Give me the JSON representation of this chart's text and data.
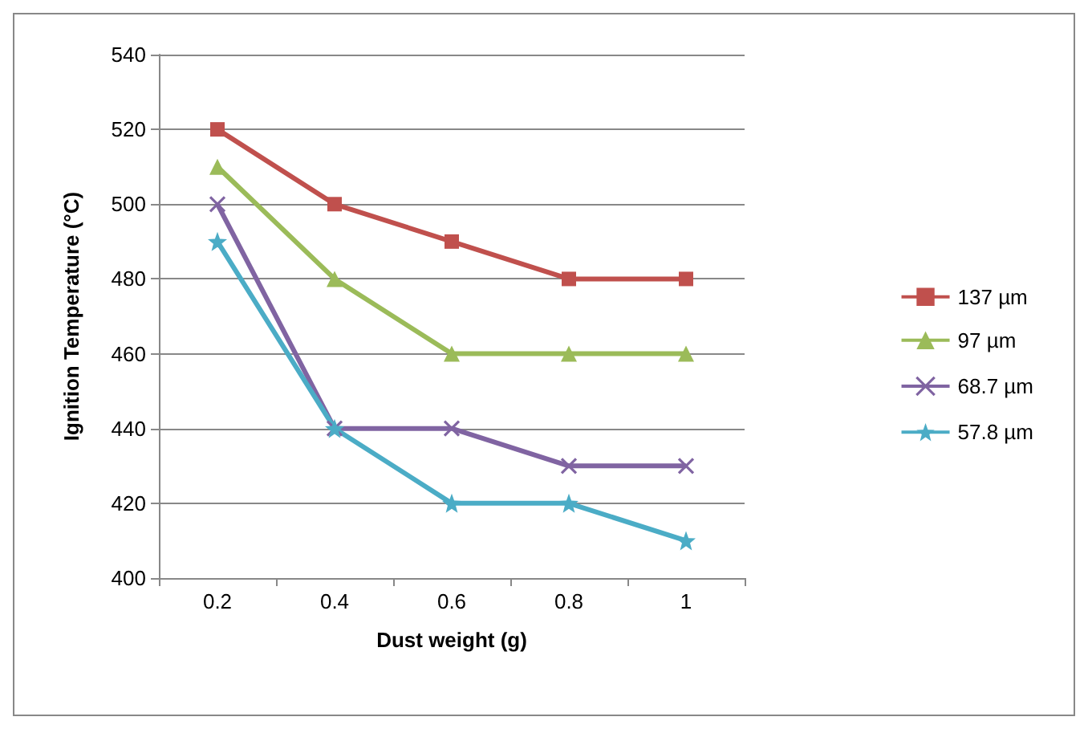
{
  "chart_data": {
    "type": "line",
    "xlabel": "Dust weight (g)",
    "ylabel": "Ignition Temperature (°C)",
    "categories": [
      "0.2",
      "0.4",
      "0.6",
      "0.8",
      "1"
    ],
    "series": [
      {
        "name": "137 µm",
        "color": "#c0504d",
        "marker": "square",
        "values": [
          520,
          500,
          490,
          480,
          480
        ]
      },
      {
        "name": "97 µm",
        "color": "#9bbb59",
        "marker": "triangle",
        "values": [
          510,
          480,
          460,
          460,
          460
        ]
      },
      {
        "name": "68.7 µm",
        "color": "#8064a2",
        "marker": "cross",
        "values": [
          500,
          440,
          440,
          430,
          430
        ]
      },
      {
        "name": "57.8 µm",
        "color": "#4bacc6",
        "marker": "star",
        "values": [
          490,
          440,
          420,
          420,
          410
        ]
      }
    ],
    "ylim": [
      400,
      540
    ],
    "yticks": [
      400,
      420,
      440,
      460,
      480,
      500,
      520,
      540
    ],
    "grid": "y",
    "legend": "right",
    "line_style": "solid"
  }
}
